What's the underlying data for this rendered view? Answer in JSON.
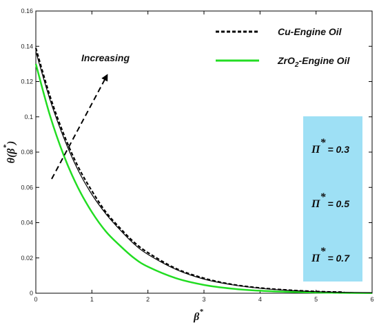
{
  "chart_data": {
    "type": "line",
    "xlabel": "β",
    "xlabel_sup": "*",
    "ylabel": "θ(β",
    "ylabel_sup": "*",
    "ylabel_close": ")",
    "xlim": [
      0,
      6
    ],
    "ylim": [
      0,
      0.16
    ],
    "xticks": [
      "0",
      "1",
      "2",
      "3",
      "4",
      "5",
      "6"
    ],
    "yticks": [
      "0",
      "0.02",
      "0.04",
      "0.06",
      "0.08",
      "0.1",
      "0.12",
      "0.14",
      "0.16"
    ],
    "grid": false,
    "legend_position": "top-right",
    "legend": [
      {
        "label": "Cu-Engine Oil",
        "color": "#000000",
        "style": "dashed"
      },
      {
        "label_main": "ZrO",
        "label_sub": "2",
        "label_rest": "-Engine Oil",
        "color": "#22dd22",
        "style": "solid"
      }
    ],
    "annotation": "Increasing",
    "parameter_box": {
      "symbol": "Π",
      "sup": "*",
      "entries": [
        "= 0.3",
        "= 0.5",
        "= 0.7"
      ],
      "color": "#9ee0f5"
    },
    "series": [
      {
        "name": "Cu-Engine Oil",
        "color": "#000000",
        "style": "dashed",
        "x": [
          0,
          0.25,
          0.5,
          0.75,
          1,
          1.25,
          1.5,
          1.75,
          2,
          2.5,
          3,
          3.5,
          4,
          4.5,
          5,
          5.5
        ],
        "y": [
          0.139,
          0.112,
          0.09,
          0.072,
          0.058,
          0.046,
          0.037,
          0.029,
          0.023,
          0.014,
          0.0085,
          0.005,
          0.003,
          0.0018,
          0.001,
          0.0006
        ]
      },
      {
        "name": "Cu-Engine Oil",
        "color": "#000000",
        "style": "solid",
        "x": [
          0,
          0.25,
          0.5,
          0.75,
          1,
          1.25,
          1.5,
          1.75,
          2,
          2.5,
          3,
          3.5,
          4,
          4.5,
          5,
          5.5,
          6
        ],
        "y": [
          0.137,
          0.11,
          0.088,
          0.07,
          0.056,
          0.045,
          0.036,
          0.028,
          0.022,
          0.0135,
          0.008,
          0.0048,
          0.0028,
          0.0016,
          0.0009,
          0.0005,
          0.0003
        ]
      },
      {
        "name": "ZrO2-Engine Oil",
        "color": "#22dd22",
        "style": "solid",
        "x": [
          0,
          0.25,
          0.5,
          0.75,
          1,
          1.25,
          1.5,
          1.75,
          2,
          2.5,
          3,
          3.5,
          4,
          4.5,
          5,
          5.5,
          6
        ],
        "y": [
          0.13,
          0.101,
          0.078,
          0.06,
          0.046,
          0.035,
          0.027,
          0.02,
          0.015,
          0.0085,
          0.0047,
          0.0026,
          0.0014,
          0.0008,
          0.0004,
          0.0002,
          0.0001
        ]
      }
    ]
  }
}
